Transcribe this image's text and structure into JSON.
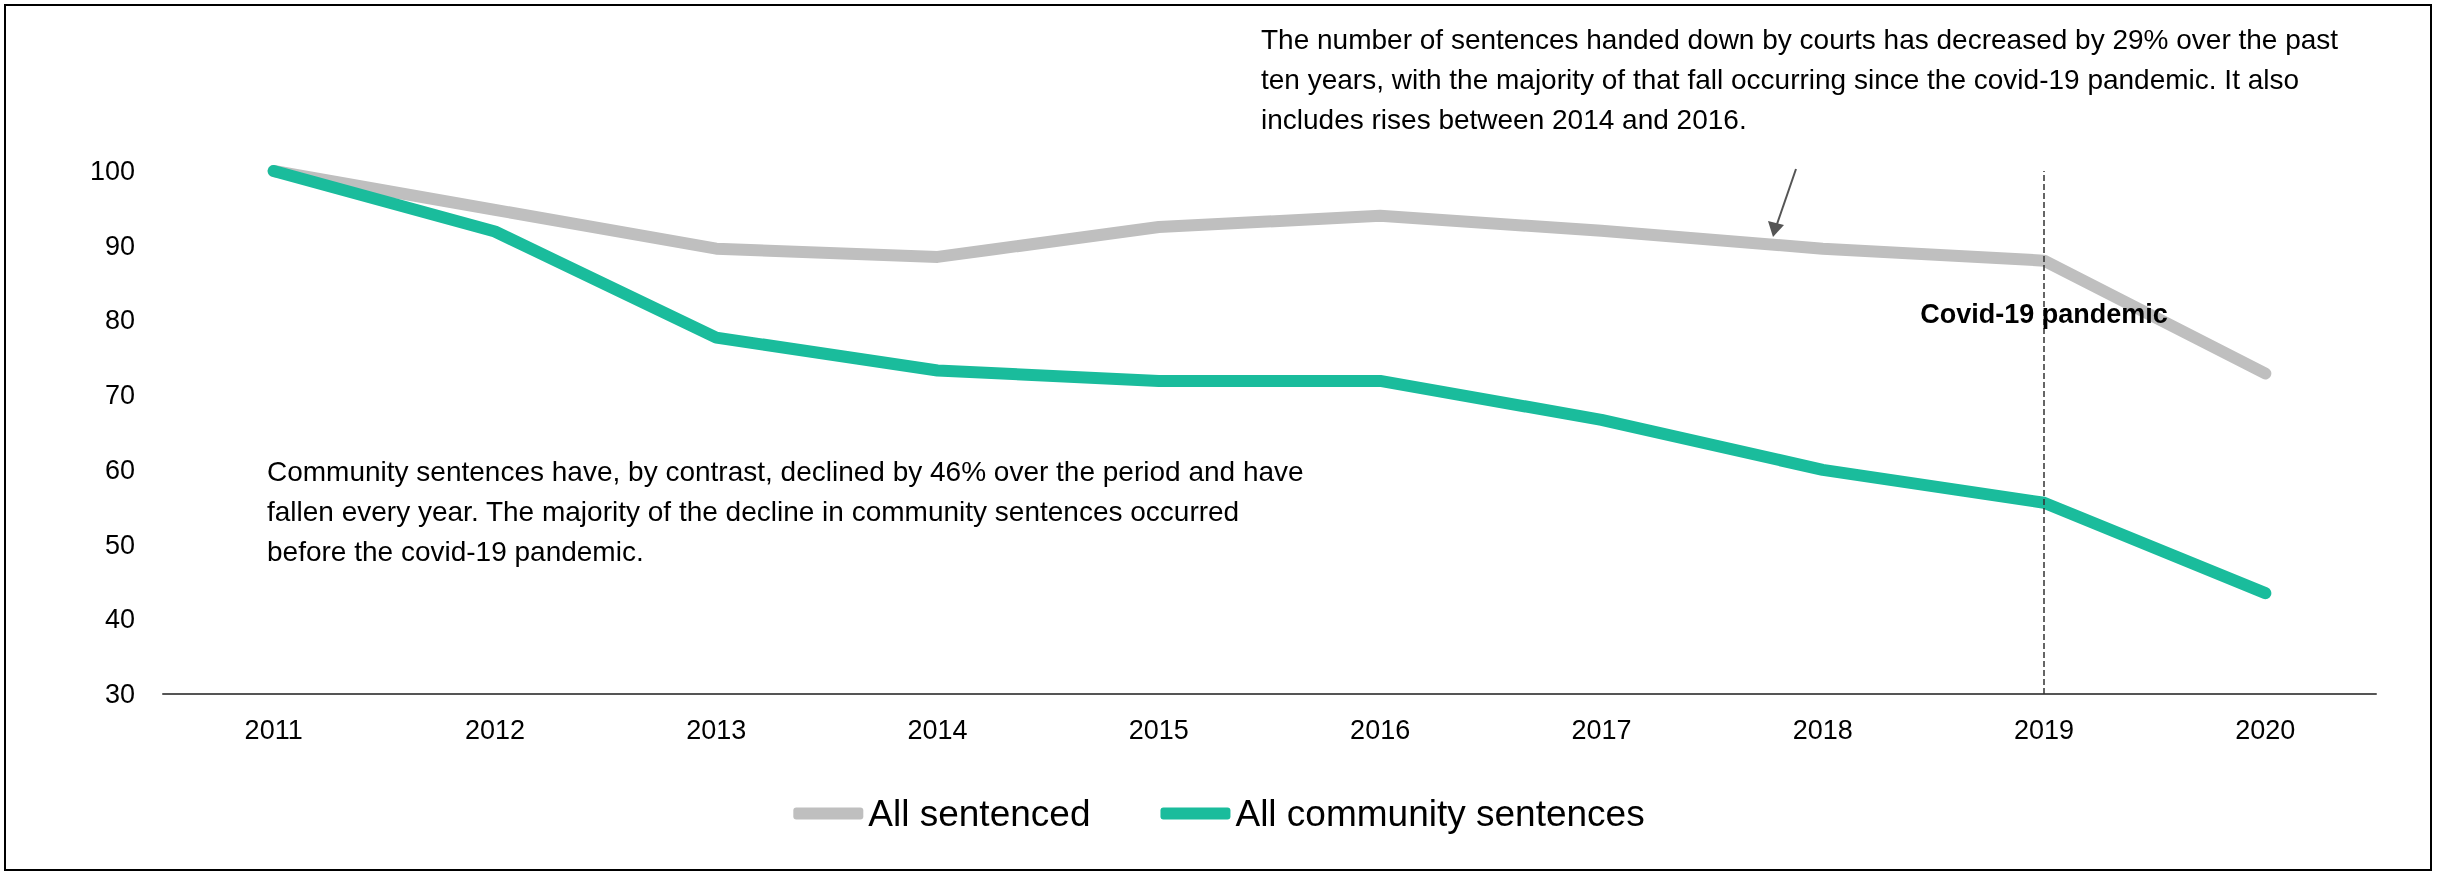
{
  "chart_data": {
    "type": "line",
    "categories": [
      "2011",
      "2012",
      "2013",
      "2014",
      "2015",
      "2016",
      "2017",
      "2018",
      "2019",
      "2020"
    ],
    "series": [
      {
        "name": "All sentenced",
        "color": "#bfbfbf",
        "values": [
          100,
          94.8,
          89.6,
          88.5,
          92.5,
          94,
          92,
          89.6,
          88,
          72.9
        ]
      },
      {
        "name": "All community sentences",
        "color": "#1abc9c",
        "values": [
          100,
          91.9,
          77.7,
          73.3,
          71.9,
          71.9,
          66.7,
          60,
          55.6,
          43.5
        ]
      }
    ],
    "ylim": [
      30,
      100
    ],
    "yticks": [
      30,
      40,
      50,
      60,
      70,
      80,
      90,
      100
    ],
    "grid": false,
    "legend": "bottom",
    "line_style": "solid",
    "ref_lines": [
      {
        "axis": "x",
        "value": "2019",
        "label": "Covid-19 pandemic",
        "line_style": "dashed",
        "color": "#333333"
      }
    ],
    "annotations": [
      "The number of sentences handed down by courts has decreased by 29% over the past ten years, with the majority of that fall occurring since the covid-19 pandemic. It also includes rises between 2014 and 2016.",
      "Community sentences have, by contrast, declined by 46% over the period and have fallen every year. The majority of the decline in community sentences occurred before the covid-19 pandemic."
    ]
  }
}
